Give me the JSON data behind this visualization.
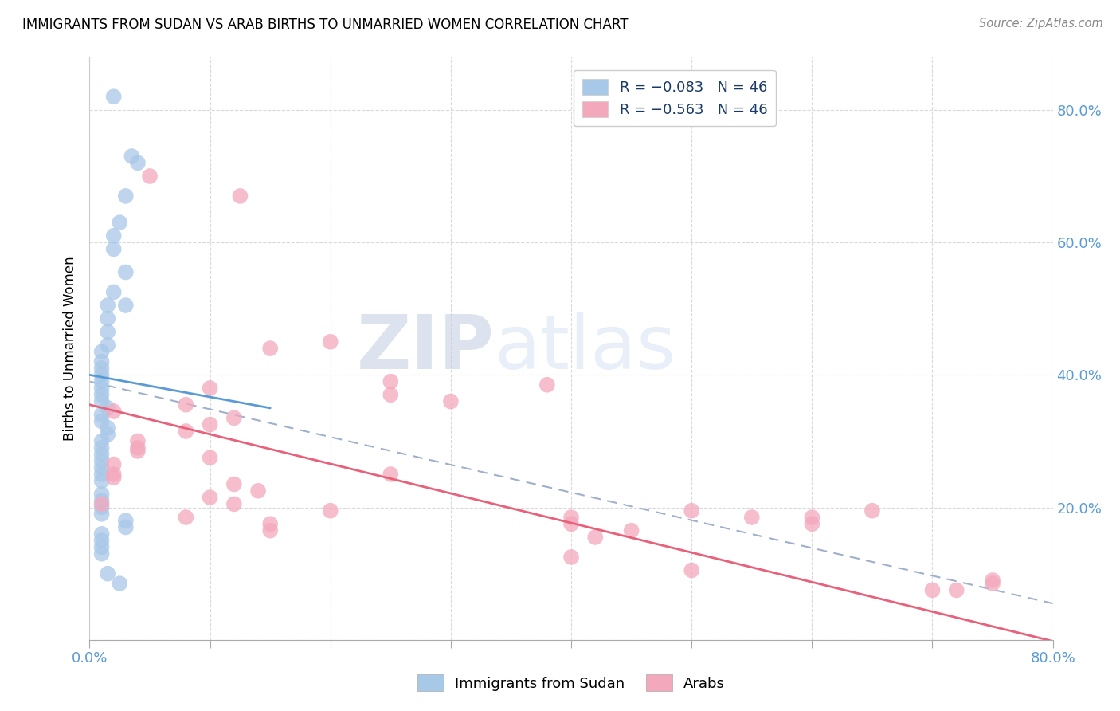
{
  "title": "IMMIGRANTS FROM SUDAN VS ARAB BIRTHS TO UNMARRIED WOMEN CORRELATION CHART",
  "source": "Source: ZipAtlas.com",
  "ylabel": "Births to Unmarried Women",
  "sudan_color": "#a8c8e8",
  "arab_color": "#f4a8bc",
  "sudan_line_color": "#5b9bd5",
  "arab_line_color": "#e8607a",
  "dashed_line_color": "#a0b0cc",
  "watermark_zip": "ZIP",
  "watermark_atlas": "atlas",
  "sudan_scatter": [
    [
      0.004,
      0.82
    ],
    [
      0.007,
      0.73
    ],
    [
      0.008,
      0.72
    ],
    [
      0.006,
      0.67
    ],
    [
      0.005,
      0.63
    ],
    [
      0.004,
      0.61
    ],
    [
      0.004,
      0.59
    ],
    [
      0.006,
      0.555
    ],
    [
      0.004,
      0.525
    ],
    [
      0.003,
      0.505
    ],
    [
      0.003,
      0.485
    ],
    [
      0.003,
      0.465
    ],
    [
      0.003,
      0.445
    ],
    [
      0.002,
      0.435
    ],
    [
      0.002,
      0.42
    ],
    [
      0.002,
      0.41
    ],
    [
      0.002,
      0.4
    ],
    [
      0.002,
      0.39
    ],
    [
      0.002,
      0.38
    ],
    [
      0.002,
      0.37
    ],
    [
      0.002,
      0.36
    ],
    [
      0.003,
      0.35
    ],
    [
      0.002,
      0.34
    ],
    [
      0.002,
      0.33
    ],
    [
      0.003,
      0.32
    ],
    [
      0.003,
      0.31
    ],
    [
      0.002,
      0.3
    ],
    [
      0.002,
      0.29
    ],
    [
      0.002,
      0.28
    ],
    [
      0.002,
      0.27
    ],
    [
      0.002,
      0.26
    ],
    [
      0.002,
      0.25
    ],
    [
      0.002,
      0.24
    ],
    [
      0.006,
      0.505
    ],
    [
      0.002,
      0.22
    ],
    [
      0.002,
      0.21
    ],
    [
      0.002,
      0.2
    ],
    [
      0.002,
      0.19
    ],
    [
      0.006,
      0.18
    ],
    [
      0.006,
      0.17
    ],
    [
      0.002,
      0.16
    ],
    [
      0.002,
      0.15
    ],
    [
      0.002,
      0.14
    ],
    [
      0.002,
      0.13
    ],
    [
      0.003,
      0.1
    ],
    [
      0.005,
      0.085
    ]
  ],
  "arab_scatter": [
    [
      0.01,
      0.7
    ],
    [
      0.002,
      0.205
    ],
    [
      0.025,
      0.67
    ],
    [
      0.04,
      0.45
    ],
    [
      0.03,
      0.44
    ],
    [
      0.05,
      0.39
    ],
    [
      0.02,
      0.38
    ],
    [
      0.05,
      0.37
    ],
    [
      0.06,
      0.36
    ],
    [
      0.016,
      0.355
    ],
    [
      0.004,
      0.345
    ],
    [
      0.024,
      0.335
    ],
    [
      0.02,
      0.325
    ],
    [
      0.016,
      0.315
    ],
    [
      0.008,
      0.3
    ],
    [
      0.008,
      0.29
    ],
    [
      0.008,
      0.285
    ],
    [
      0.02,
      0.275
    ],
    [
      0.004,
      0.265
    ],
    [
      0.004,
      0.25
    ],
    [
      0.05,
      0.25
    ],
    [
      0.004,
      0.245
    ],
    [
      0.024,
      0.235
    ],
    [
      0.028,
      0.225
    ],
    [
      0.02,
      0.215
    ],
    [
      0.024,
      0.205
    ],
    [
      0.04,
      0.195
    ],
    [
      0.016,
      0.185
    ],
    [
      0.03,
      0.175
    ],
    [
      0.03,
      0.165
    ],
    [
      0.08,
      0.185
    ],
    [
      0.08,
      0.175
    ],
    [
      0.09,
      0.165
    ],
    [
      0.076,
      0.385
    ],
    [
      0.084,
      0.155
    ],
    [
      0.1,
      0.195
    ],
    [
      0.11,
      0.185
    ],
    [
      0.12,
      0.175
    ],
    [
      0.08,
      0.125
    ],
    [
      0.1,
      0.105
    ],
    [
      0.12,
      0.185
    ],
    [
      0.13,
      0.195
    ],
    [
      0.14,
      0.075
    ],
    [
      0.144,
      0.075
    ],
    [
      0.15,
      0.085
    ],
    [
      0.15,
      0.09
    ]
  ],
  "xmin": 0.0,
  "xmax": 0.16,
  "ymin": 0.0,
  "ymax": 0.88,
  "xlim_display_max": 0.8,
  "sudan_line_x": [
    0.0,
    0.03
  ],
  "sudan_line_y": [
    0.39,
    0.33
  ],
  "arab_line_x": [
    0.0,
    0.16
  ],
  "arab_line_y": [
    0.36,
    0.02
  ],
  "dash_line_x": [
    0.0,
    0.16
  ],
  "dash_line_y": [
    0.39,
    0.055
  ]
}
